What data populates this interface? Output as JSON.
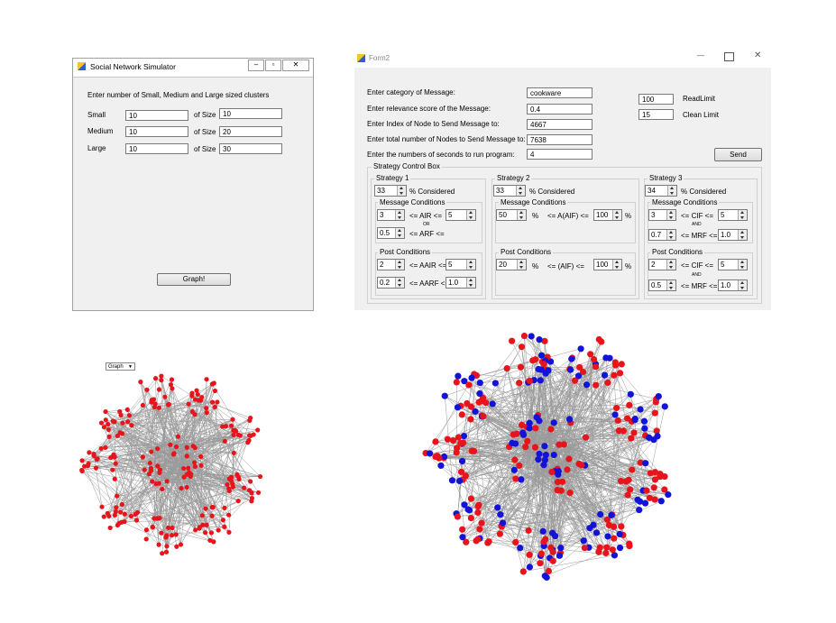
{
  "win1": {
    "title": "Social Network Simulator",
    "prompt": "Enter number of Small, Medium and Large sized clusters",
    "rows": [
      {
        "label": "Small",
        "count": "10",
        "of_size": "of Size",
        "size": "10"
      },
      {
        "label": "Medium",
        "count": "10",
        "of_size": "of Size",
        "size": "20"
      },
      {
        "label": "Large",
        "count": "10",
        "of_size": "of Size",
        "size": "30"
      }
    ],
    "graph_button": "Graph!"
  },
  "win2": {
    "title": "Form2",
    "fields": [
      {
        "label": "Enter category of Message:",
        "value": "cookware"
      },
      {
        "label": "Enter relevance score of the Message:",
        "value": "0.4"
      },
      {
        "label": "Enter Index of Node to Send Message to:",
        "value": "4667"
      },
      {
        "label": "Enter total number of Nodes to Send Message to:",
        "value": "7638"
      },
      {
        "label": "Enter the numbers of seconds to run program:",
        "value": "4"
      }
    ],
    "read_limit": {
      "value": "100",
      "label": "ReadLimit"
    },
    "clean_limit": {
      "value": "15",
      "label": "Clean Limit"
    },
    "send_button": "Send",
    "strategy_box": {
      "title": "Strategy Control Box",
      "s1": {
        "title": "Strategy 1",
        "pct": "33",
        "pct_label": "% Considered",
        "msg_title": "Message Conditions",
        "m_a": "3",
        "m_air": "<= AIR <=",
        "m_b": "5",
        "or": "OR",
        "m_c": "0.5",
        "m_arf": "<= ARF <=",
        "post_title": "Post Conditions",
        "p_a": "2",
        "p_aair": "<= AAIR <=",
        "p_b": "5",
        "p_c": "0.2",
        "p_aarf": "<= AARF <=",
        "p_d": "1.0"
      },
      "s2": {
        "title": "Strategy 2",
        "pct": "33",
        "pct_label": "% Considered",
        "msg_title": "Message Conditions",
        "m_a": "50",
        "m_pct": "%",
        "m_aif": "<= A(AIF) <=",
        "m_b": "100",
        "m_pct2": "%",
        "post_title": "Post Conditions",
        "p_a": "20",
        "p_pct": "%",
        "p_aif": "<= (AIF) <=",
        "p_b": "100",
        "p_pct2": "%"
      },
      "s3": {
        "title": "Strategy 3",
        "pct": "34",
        "pct_label": "% Considered",
        "msg_title": "Message Conditions",
        "m_a": "3",
        "m_cif": "<= CIF <=",
        "m_b": "5",
        "and": "AND",
        "m_c": "0.7",
        "m_mrf": "<= MRF <=",
        "m_d": "1.0",
        "post_title": "Post Conditions",
        "p_a": "2",
        "p_cif": "<= CIF <=",
        "p_b": "5",
        "p_c": "0.5",
        "p_mrf": "<= MRF <=",
        "p_d": "1.0"
      }
    }
  },
  "graph_dropdown": "Graph",
  "colors": {
    "red": "#e8141c",
    "blue": "#1212d8",
    "edge": "#9a9a9a"
  }
}
